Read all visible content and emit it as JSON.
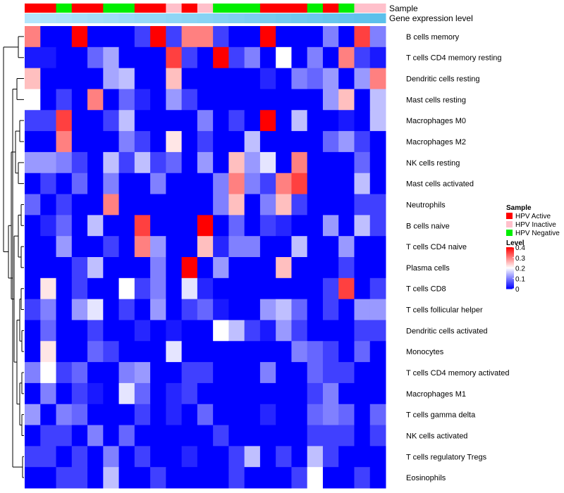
{
  "chart_data": {
    "type": "heatmap",
    "annotation_tracks": [
      "Sample",
      "Gene expression level"
    ],
    "rows": [
      "B cells memory",
      "T cells CD4 memory resting",
      "Dendritic cells resting",
      "Mast cells resting",
      "Macrophages M0",
      "Macrophages M2",
      "NK cells resting",
      "Mast cells activated",
      "Neutrophils",
      "B cells naive",
      "T cells CD4 naive",
      "Plasma cells",
      "T cells CD8",
      "T cells follicular helper",
      "Dendritic cells activated",
      "Monocytes",
      "T cells CD4 memory activated",
      "Macrophages M1",
      "T cells gamma delta",
      "NK cells activated",
      "T cells regulatory  Tregs",
      "Eosinophils"
    ],
    "sample_groups": [
      "Active",
      "Active",
      "Negative",
      "Active",
      "Active",
      "Negative",
      "Negative",
      "Active",
      "Active",
      "Inactive",
      "Active",
      "Inactive",
      "Negative",
      "Negative",
      "Negative",
      "Active",
      "Active",
      "Active",
      "Negative",
      "Active",
      "Negative",
      "Inactive",
      "Inactive"
    ],
    "values": [
      [
        0.3,
        0.0,
        0.0,
        0.4,
        0.0,
        0.0,
        0.0,
        0.05,
        0.4,
        0.05,
        0.3,
        0.3,
        0.05,
        0.0,
        0.0,
        0.4,
        0.0,
        0.0,
        0.0,
        0.1,
        0.0,
        0.35,
        0.1
      ],
      [
        0.02,
        0.02,
        0.0,
        0.0,
        0.08,
        0.13,
        0.0,
        0.0,
        0.0,
        0.35,
        0.05,
        0.0,
        0.4,
        0.05,
        0.1,
        0.0,
        0.2,
        0.0,
        0.1,
        0.0,
        0.3,
        0.05,
        0.02
      ],
      [
        0.25,
        0.0,
        0.0,
        0.0,
        0.0,
        0.13,
        0.15,
        0.0,
        0.0,
        0.25,
        0.0,
        0.0,
        0.0,
        0.0,
        0.0,
        0.03,
        0.0,
        0.1,
        0.08,
        0.12,
        0.0,
        0.12,
        0.3
      ],
      [
        0.2,
        0.0,
        0.05,
        0.0,
        0.3,
        0.0,
        0.08,
        0.03,
        0.0,
        0.12,
        0.05,
        0.0,
        0.0,
        0.0,
        0.0,
        0.0,
        0.0,
        0.0,
        0.0,
        0.12,
        0.25,
        0.0,
        0.15
      ],
      [
        0.05,
        0.05,
        0.35,
        0.0,
        0.0,
        0.05,
        0.15,
        0.0,
        0.0,
        0.0,
        0.0,
        0.1,
        0.0,
        0.05,
        0.0,
        0.4,
        0.0,
        0.15,
        0.0,
        0.0,
        0.02,
        0.0,
        0.15
      ],
      [
        0.0,
        0.0,
        0.3,
        0.0,
        0.0,
        0.0,
        0.1,
        0.05,
        0.0,
        0.22,
        0.0,
        0.05,
        0.0,
        0.0,
        0.15,
        0.0,
        0.0,
        0.0,
        0.0,
        0.08,
        0.12,
        0.05,
        0.0
      ],
      [
        0.12,
        0.12,
        0.1,
        0.05,
        0.0,
        0.15,
        0.05,
        0.15,
        0.05,
        0.08,
        0.0,
        0.12,
        0.0,
        0.25,
        0.12,
        0.18,
        0.0,
        0.3,
        0.0,
        0.0,
        0.0,
        0.08,
        0.0
      ],
      [
        0.0,
        0.05,
        0.0,
        0.08,
        0.0,
        0.1,
        0.0,
        0.0,
        0.1,
        0.0,
        0.0,
        0.0,
        0.1,
        0.3,
        0.1,
        0.05,
        0.3,
        0.35,
        0.0,
        0.0,
        0.0,
        0.15,
        0.0
      ],
      [
        0.08,
        0.0,
        0.05,
        0.0,
        0.0,
        0.3,
        0.0,
        0.0,
        0.0,
        0.0,
        0.0,
        0.0,
        0.1,
        0.25,
        0.0,
        0.1,
        0.25,
        0.05,
        0.0,
        0.0,
        0.0,
        0.05,
        0.05
      ],
      [
        0.0,
        0.03,
        0.08,
        0.0,
        0.15,
        0.0,
        0.0,
        0.35,
        0.0,
        0.0,
        0.0,
        0.4,
        0.0,
        0.08,
        0.0,
        0.05,
        0.03,
        0.0,
        0.0,
        0.12,
        0.0,
        0.15,
        0.05
      ],
      [
        0.0,
        0.0,
        0.12,
        0.0,
        0.0,
        0.05,
        0.0,
        0.3,
        0.12,
        0.0,
        0.0,
        0.25,
        0.03,
        0.1,
        0.1,
        0.0,
        0.0,
        0.15,
        0.0,
        0.0,
        0.12,
        0.0,
        0.0
      ],
      [
        0.0,
        0.0,
        0.0,
        0.05,
        0.15,
        0.0,
        0.0,
        0.0,
        0.1,
        0.0,
        0.4,
        0.0,
        0.12,
        0.0,
        0.0,
        0.0,
        0.25,
        0.0,
        0.0,
        0.0,
        0.05,
        0.0,
        0.0
      ],
      [
        0.0,
        0.22,
        0.0,
        0.05,
        0.0,
        0.0,
        0.2,
        0.05,
        0.1,
        0.0,
        0.18,
        0.03,
        0.0,
        0.0,
        0.0,
        0.0,
        0.0,
        0.0,
        0.0,
        0.05,
        0.35,
        0.0,
        0.05
      ],
      [
        0.05,
        0.1,
        0.0,
        0.12,
        0.18,
        0.0,
        0.05,
        0.0,
        0.12,
        0.0,
        0.05,
        0.08,
        0.02,
        0.0,
        0.0,
        0.12,
        0.15,
        0.08,
        0.0,
        0.05,
        0.0,
        0.12,
        0.12
      ],
      [
        0.0,
        0.08,
        0.0,
        0.0,
        0.05,
        0.0,
        0.0,
        0.03,
        0.0,
        0.02,
        0.0,
        0.0,
        0.2,
        0.15,
        0.05,
        0.02,
        0.12,
        0.05,
        0.0,
        0.0,
        0.0,
        0.05,
        0.05
      ],
      [
        0.0,
        0.22,
        0.0,
        0.0,
        0.08,
        0.05,
        0.0,
        0.0,
        0.0,
        0.18,
        0.0,
        0.0,
        0.0,
        0.0,
        0.0,
        0.0,
        0.0,
        0.1,
        0.08,
        0.05,
        0.0,
        0.08,
        0.0
      ],
      [
        0.1,
        0.2,
        0.05,
        0.08,
        0.0,
        0.0,
        0.1,
        0.12,
        0.0,
        0.0,
        0.05,
        0.05,
        0.0,
        0.0,
        0.0,
        0.1,
        0.0,
        0.0,
        0.08,
        0.05,
        0.05,
        0.0,
        0.0
      ],
      [
        0.0,
        0.1,
        0.0,
        0.05,
        0.02,
        0.0,
        0.18,
        0.08,
        0.0,
        0.03,
        0.05,
        0.0,
        0.0,
        0.0,
        0.0,
        0.0,
        0.0,
        0.0,
        0.05,
        0.1,
        0.0,
        0.0,
        0.0
      ],
      [
        0.12,
        0.0,
        0.1,
        0.08,
        0.0,
        0.0,
        0.0,
        0.05,
        0.0,
        0.03,
        0.0,
        0.08,
        0.0,
        0.0,
        0.0,
        0.03,
        0.0,
        0.0,
        0.08,
        0.1,
        0.08,
        0.0,
        0.08
      ],
      [
        0.0,
        0.05,
        0.05,
        0.0,
        0.1,
        0.0,
        0.08,
        0.0,
        0.0,
        0.0,
        0.0,
        0.0,
        0.05,
        0.0,
        0.0,
        0.0,
        0.0,
        0.0,
        0.05,
        0.05,
        0.05,
        0.0,
        0.05
      ],
      [
        0.05,
        0.05,
        0.0,
        0.05,
        0.0,
        0.1,
        0.0,
        0.05,
        0.0,
        0.0,
        0.03,
        0.0,
        0.0,
        0.05,
        0.15,
        0.0,
        0.05,
        0.0,
        0.15,
        0.05,
        0.0,
        0.0,
        0.0
      ],
      [
        0.0,
        0.0,
        0.05,
        0.05,
        0.0,
        0.15,
        0.0,
        0.0,
        0.05,
        0.0,
        0.0,
        0.0,
        0.0,
        0.05,
        0.0,
        0.0,
        0.0,
        0.05,
        0.2,
        0.0,
        0.0,
        0.05,
        0.0
      ]
    ],
    "legend_sample": {
      "title": "Sample",
      "entries": [
        {
          "key": "Active",
          "label": "HPV Active",
          "color": "#ff0000"
        },
        {
          "key": "Inactive",
          "label": "HPV Inactive",
          "color": "#ffc0cb"
        },
        {
          "key": "Negative",
          "label": "HPV Negative",
          "color": "#00ee00"
        }
      ]
    },
    "legend_level": {
      "title": "Level",
      "ticks": [
        0.4,
        0.3,
        0.2,
        0.1,
        0
      ],
      "min": 0,
      "max": 0.4,
      "colors": {
        "low": "#0000ff",
        "mid": "#ffffff",
        "high": "#ff0000"
      }
    },
    "expression_track_color": "#5bc0eb",
    "expression_track_color_light": "#b3e5fc"
  }
}
